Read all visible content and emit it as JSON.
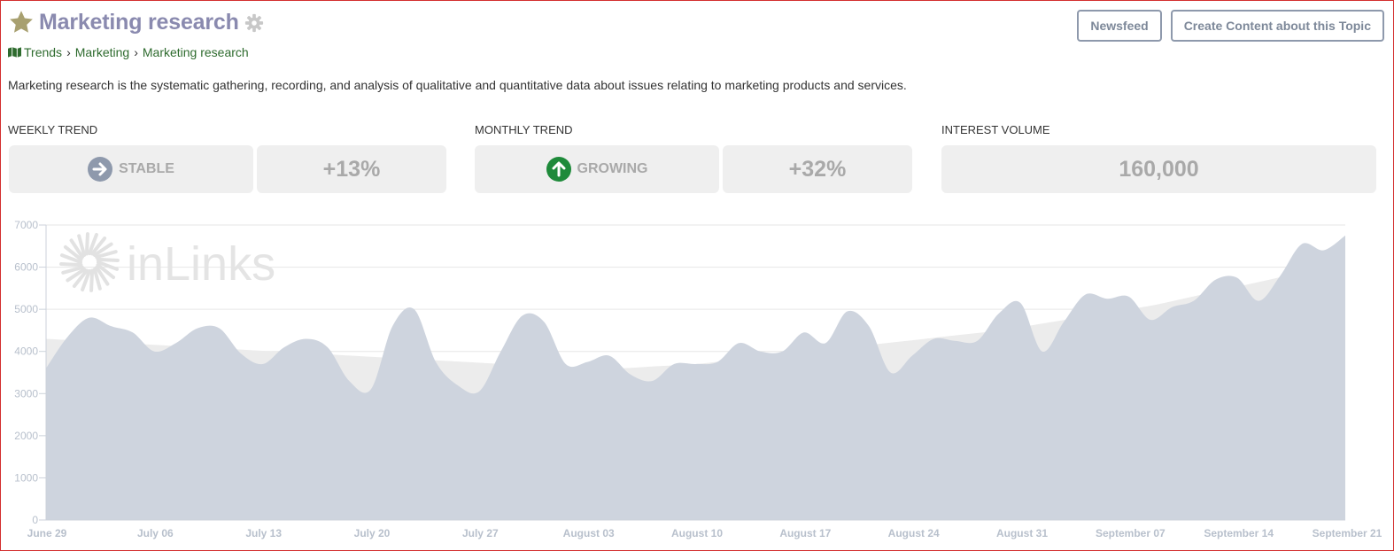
{
  "topic": {
    "title": "Marketing research",
    "description": "Marketing research is the systematic gathering, recording, and analysis of qualitative and quantitative data about issues relating to marketing products and services."
  },
  "breadcrumb": [
    "Trends",
    "Marketing",
    "Marketing research"
  ],
  "buttons": {
    "newsfeed": "Newsfeed",
    "create": "Create Content about this Topic"
  },
  "stats": {
    "weekly": {
      "label": "WEEKLY TREND",
      "status": "STABLE",
      "change": "+13%"
    },
    "monthly": {
      "label": "MONTHLY TREND",
      "status": "GROWING",
      "change": "+32%"
    },
    "volume": {
      "label": "INTEREST VOLUME",
      "value": "160,000"
    }
  },
  "watermark": "inLinks",
  "icons": [
    "star-icon",
    "gear-icon",
    "map-icon",
    "arrow-right-circle-icon",
    "arrow-up-circle-icon",
    "sunburst-logo-icon"
  ],
  "colors": {
    "title": "#8a8aaf",
    "link": "#2e6b2e",
    "growing": "#1e8a3a",
    "stable": "#8e99ac",
    "area": "#ced4de",
    "trend": "#ececec"
  },
  "chart_data": {
    "type": "area",
    "x_labels": [
      "June 29",
      "July 06",
      "July 13",
      "July 20",
      "July 27",
      "August 03",
      "August 10",
      "August 17",
      "August 24",
      "August 31",
      "September 07",
      "September 14",
      "September 21"
    ],
    "ylim": [
      0,
      7000
    ],
    "yticks": [
      0,
      1000,
      2000,
      3000,
      4000,
      5000,
      6000,
      7000
    ],
    "grid": true,
    "series": [
      {
        "values": [
          3600,
          4350,
          4800,
          4600,
          4450,
          4000,
          4200,
          4550,
          4550,
          3950,
          3700,
          4100,
          4300,
          4100,
          3300,
          3100,
          4600,
          5000,
          3750,
          3200,
          3050,
          4000,
          4850,
          4700,
          3700,
          3750,
          3900,
          3450,
          3300,
          3700,
          3700,
          3750,
          4200,
          4000,
          4000,
          4450,
          4200,
          4950,
          4600,
          3500,
          3900,
          4300,
          4250,
          4250,
          4900,
          5150,
          4000,
          4700,
          5350,
          5250,
          5300,
          4750,
          5050,
          5200,
          5700,
          5750,
          5200,
          5800,
          6550,
          6400,
          6750
        ]
      },
      {
        "values": [
          4300,
          4250,
          4200,
          4150,
          4100,
          4050,
          4000,
          3950,
          3900,
          3850,
          3800,
          3750,
          3700,
          3650,
          3600,
          3600,
          3650,
          3700,
          3800,
          3900,
          4000,
          4100,
          4200,
          4300,
          4400,
          4500,
          4650,
          4800,
          4950,
          5100,
          5300,
          5500,
          5700,
          5900,
          6000
        ]
      }
    ]
  }
}
